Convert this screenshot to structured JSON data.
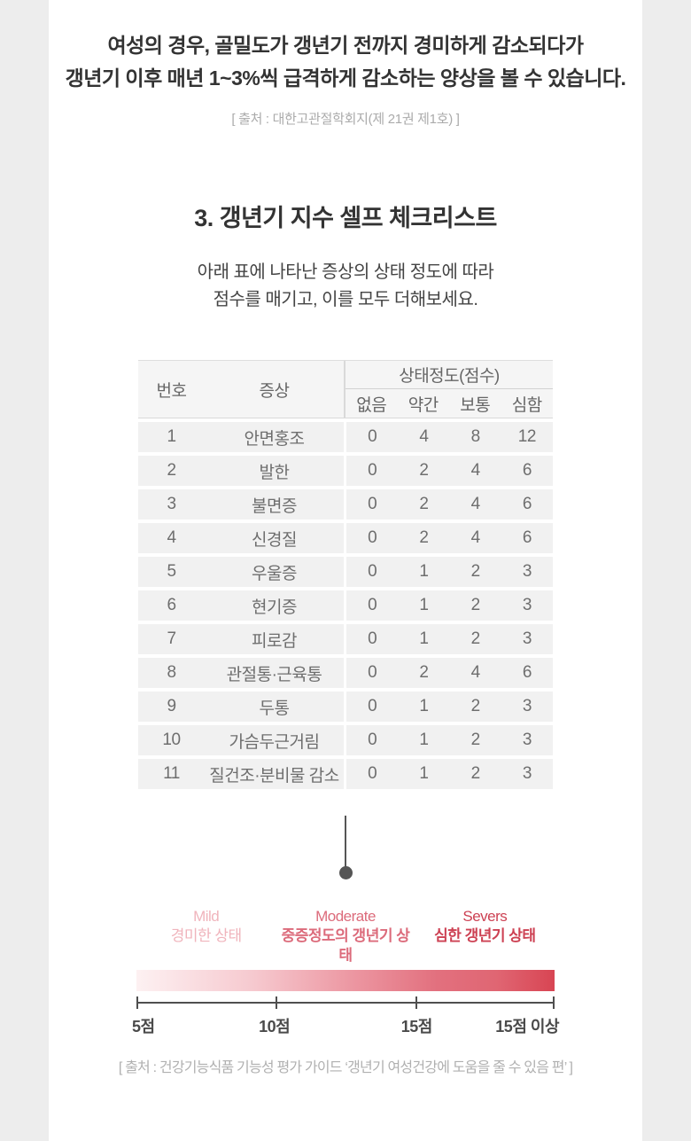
{
  "intro": {
    "line1": "여성의 경우, 골밀도가 갱년기 전까지 경미하게 감소되다가",
    "line2": "갱년기 이후 매년 1~3%씩 급격하게 감소하는 양상을 볼 수 있습니다.",
    "source": "[ 출처 : 대한고관절학회지(제 21권 제1호) ]"
  },
  "section": {
    "title": "3. 갱년기 지수 셀프 체크리스트",
    "desc_line1": "아래 표에 나타난 증상의 상태 정도에 따라",
    "desc_line2": "점수를 매기고, 이를 모두 더해보세요."
  },
  "table": {
    "col_no": "번호",
    "col_symptom": "증상",
    "col_group": "상태정도(점수)",
    "level_headers": [
      "없음",
      "약간",
      "보통",
      "심함"
    ],
    "rows": [
      {
        "no": "1",
        "symptom": "안면홍조",
        "scores": [
          "0",
          "4",
          "8",
          "12"
        ]
      },
      {
        "no": "2",
        "symptom": "발한",
        "scores": [
          "0",
          "2",
          "4",
          "6"
        ]
      },
      {
        "no": "3",
        "symptom": "불면증",
        "scores": [
          "0",
          "2",
          "4",
          "6"
        ]
      },
      {
        "no": "4",
        "symptom": "신경질",
        "scores": [
          "0",
          "2",
          "4",
          "6"
        ]
      },
      {
        "no": "5",
        "symptom": "우울증",
        "scores": [
          "0",
          "1",
          "2",
          "3"
        ]
      },
      {
        "no": "6",
        "symptom": "현기증",
        "scores": [
          "0",
          "1",
          "2",
          "3"
        ]
      },
      {
        "no": "7",
        "symptom": "피로감",
        "scores": [
          "0",
          "1",
          "2",
          "3"
        ]
      },
      {
        "no": "8",
        "symptom": "관절통·근육통",
        "scores": [
          "0",
          "2",
          "4",
          "6"
        ]
      },
      {
        "no": "9",
        "symptom": "두통",
        "scores": [
          "0",
          "1",
          "2",
          "3"
        ]
      },
      {
        "no": "10",
        "symptom": "가슴두근거림",
        "scores": [
          "0",
          "1",
          "2",
          "3"
        ]
      },
      {
        "no": "11",
        "symptom": "질건조·분비물 감소",
        "scores": [
          "0",
          "1",
          "2",
          "3"
        ]
      }
    ]
  },
  "scale": {
    "levels": [
      {
        "en": "Mild",
        "ko": "경미한 상태",
        "color": "#f0b4bc",
        "bold": false
      },
      {
        "en": "Moderate",
        "ko": "중증정도의 갱년기 상태",
        "color": "#dc6b7b",
        "bold": true
      },
      {
        "en": "Severs",
        "ko": "심한 갱년기 상태",
        "color": "#cd4153",
        "bold": true
      }
    ],
    "gradient_stops": [
      "#fdf1f2 0%",
      "#f6c9cf 28%",
      "#ec96a1 52%",
      "#e2707e 72%",
      "#e06673 86%",
      "#d84553 100%"
    ],
    "tick_labels": [
      "5점",
      "10점",
      "15점",
      "15점 이상"
    ]
  },
  "footer_source": "[ 출처 : 건강기능식품 기능성 평가 가이드 ‘갱년기 여성건강에 도움을 줄 수 있음 편’ ]"
}
